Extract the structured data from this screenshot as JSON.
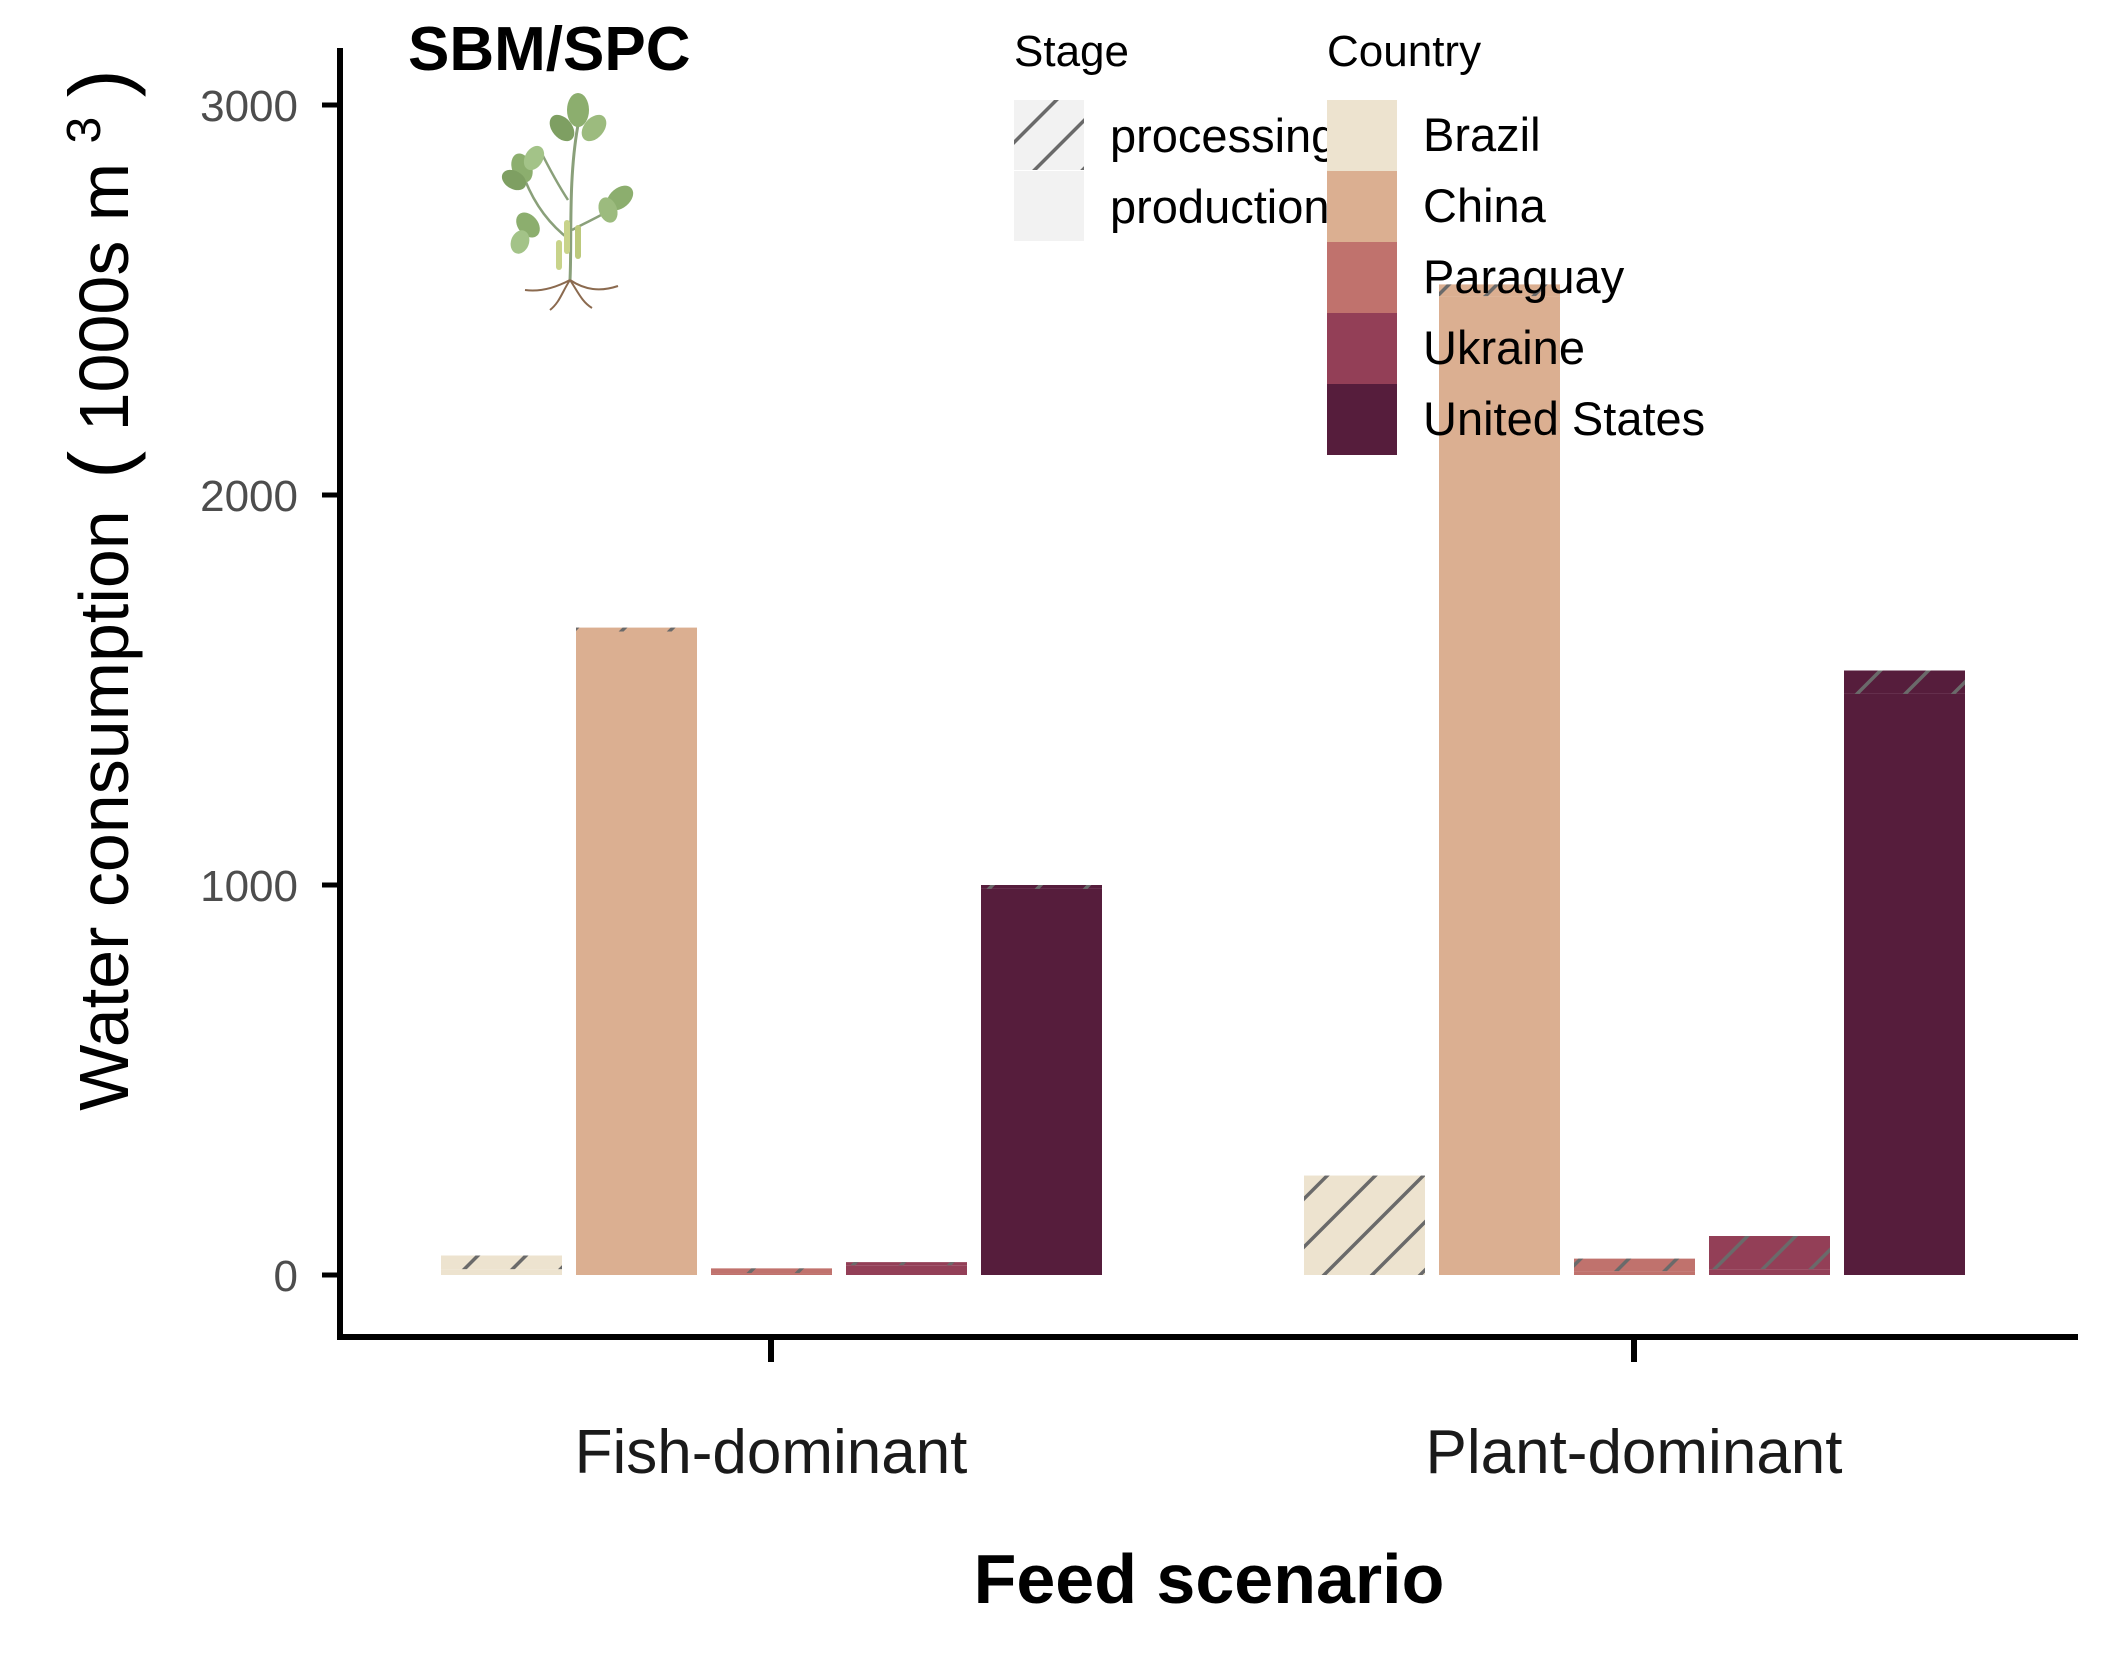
{
  "chart_data": {
    "type": "bar",
    "title": "SBM/SPC",
    "xlabel": "Feed scenario",
    "ylabel": {
      "main": "Water consumption",
      "unit_open": "(",
      "unit_text": "1000s m",
      "unit_sup": "3",
      "unit_close": ")"
    },
    "categories": [
      "Fish-dominant",
      "Plant-dominant"
    ],
    "ylim": [
      -150,
      3150
    ],
    "yticks": [
      0,
      1000,
      2000,
      3000
    ],
    "grid": false,
    "stage_legend": {
      "title": "Stage",
      "items": [
        {
          "label": "processing",
          "pattern": "hatch"
        },
        {
          "label": "production",
          "pattern": "solid"
        }
      ]
    },
    "country_legend": {
      "title": "Country",
      "placement": "top-right"
    },
    "series": [
      {
        "name": "Brazil",
        "color": "#ede3cf",
        "production": [
          15,
          0
        ],
        "processing": [
          35,
          255
        ]
      },
      {
        "name": "China",
        "color": "#dbaf91",
        "production": [
          1650,
          2510
        ],
        "processing": [
          10,
          30
        ]
      },
      {
        "name": "Paraguay",
        "color": "#c0726d",
        "production": [
          5,
          10
        ],
        "processing": [
          12,
          32
        ]
      },
      {
        "name": "Ukraine",
        "color": "#933f57",
        "production": [
          25,
          15
        ],
        "processing": [
          8,
          85
        ]
      },
      {
        "name": "United States",
        "color": "#561d3c",
        "production": [
          990,
          1490
        ],
        "processing": [
          10,
          60
        ]
      }
    ]
  },
  "icon": {
    "name": "soybean-plant-icon"
  }
}
